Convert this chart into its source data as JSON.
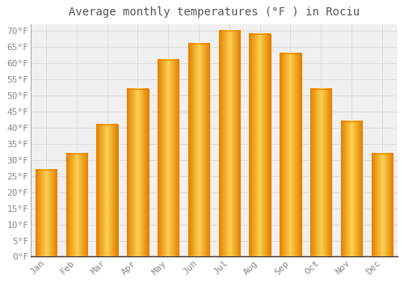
{
  "title": "Average monthly temperatures (°F ) in Rociu",
  "months": [
    "Jan",
    "Feb",
    "Mar",
    "Apr",
    "May",
    "Jun",
    "Jul",
    "Aug",
    "Sep",
    "Oct",
    "Nov",
    "Dec"
  ],
  "values": [
    27,
    32,
    41,
    52,
    61,
    66,
    70,
    69,
    63,
    52,
    42,
    32
  ],
  "bar_color_center": "#FFB300",
  "bar_color_edge": "#F08000",
  "background_color": "#FFFFFF",
  "plot_bg_color": "#F0F0F0",
  "grid_color": "#DDDDDD",
  "ylim": [
    0,
    72
  ],
  "yticks": [
    0,
    5,
    10,
    15,
    20,
    25,
    30,
    35,
    40,
    45,
    50,
    55,
    60,
    65,
    70
  ],
  "title_fontsize": 10,
  "tick_fontsize": 8,
  "font_color": "#888888",
  "title_color": "#555555"
}
